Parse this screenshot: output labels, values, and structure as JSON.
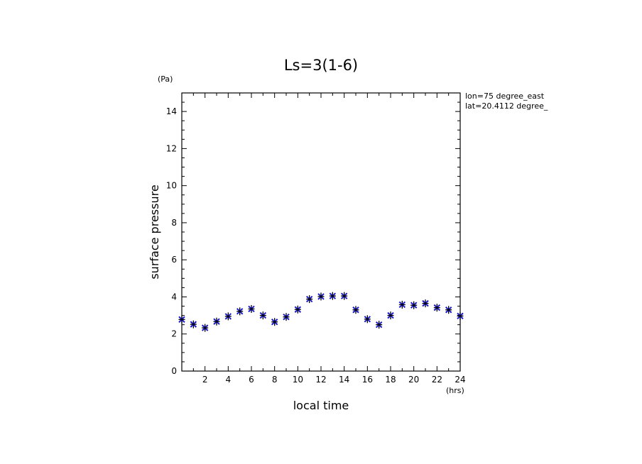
{
  "chart_data": {
    "type": "scatter",
    "title": "Ls=3(1-6)",
    "xlabel": "local time",
    "ylabel": "surface pressure",
    "x_unit": "(hrs)",
    "y_unit": "(Pa)",
    "info_lines": [
      "lon=75 degree_east",
      "lat=20.4112 degree_"
    ],
    "xlim": [
      0,
      24
    ],
    "ylim": [
      0,
      15
    ],
    "x_ticks": [
      2,
      4,
      6,
      8,
      10,
      12,
      14,
      16,
      18,
      20,
      22,
      24
    ],
    "y_ticks": [
      0,
      2,
      4,
      6,
      8,
      10,
      12,
      14
    ],
    "marker_colors": {
      "blue": "#1a1acc",
      "black": "#000000"
    },
    "series": [
      {
        "x": [
          0,
          1,
          2,
          3,
          4,
          5,
          6,
          7,
          8,
          9,
          10,
          11,
          12,
          13,
          14,
          15,
          16,
          17,
          18,
          19,
          20,
          21,
          22,
          23,
          24
        ],
        "y": [
          2.78,
          2.52,
          2.33,
          2.67,
          2.95,
          3.22,
          3.35,
          3.0,
          2.65,
          2.92,
          3.32,
          3.88,
          4.02,
          4.05,
          4.05,
          3.3,
          2.8,
          2.5,
          3.0,
          3.58,
          3.55,
          3.65,
          3.42,
          3.3,
          2.97
        ]
      }
    ]
  }
}
